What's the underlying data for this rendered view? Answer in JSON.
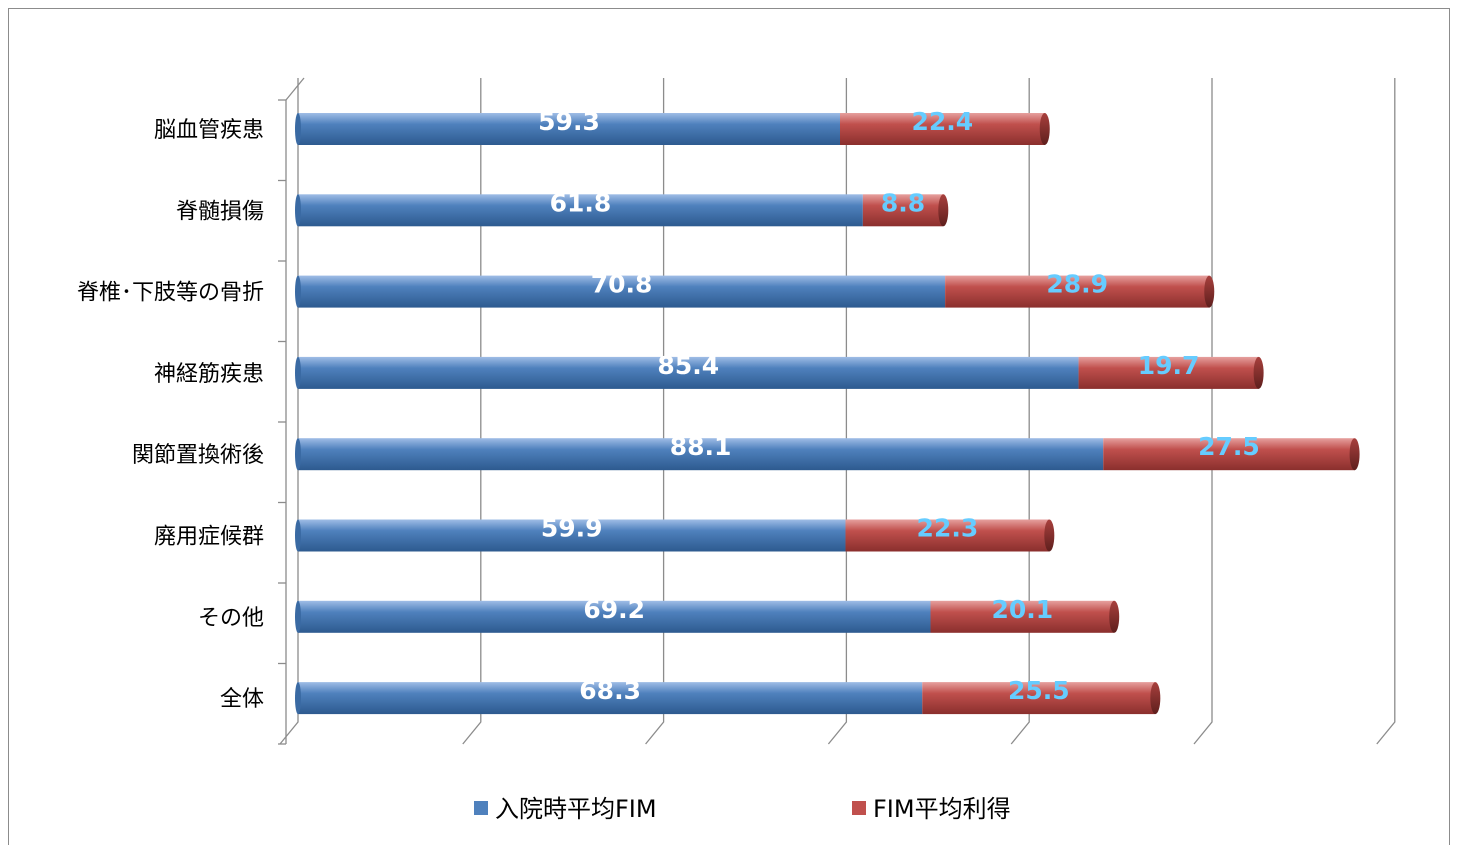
{
  "chart_data": {
    "type": "bar",
    "orientation": "horizontal",
    "stacked": true,
    "categories": [
      "脳血管疾患",
      "脊髄損傷",
      "脊椎･下肢等の骨折",
      "神経筋疾患",
      "関節置換術後",
      "廃用症候群",
      "その他",
      "全体"
    ],
    "series": [
      {
        "name": "入院時平均FIM",
        "values": [
          59.3,
          61.8,
          70.8,
          85.4,
          88.1,
          59.9,
          69.2,
          68.3
        ],
        "color": "#4f81bd"
      },
      {
        "name": "FIM平均利得",
        "values": [
          22.4,
          8.8,
          28.9,
          19.7,
          27.5,
          22.3,
          20.1,
          25.5
        ],
        "color": "#c0504d"
      }
    ],
    "xlim": [
      0,
      120
    ],
    "grid": true,
    "legend_position": "bottom",
    "label_colors": {
      "入院時平均FIM": "#ffffff",
      "FIM平均利得": "#66ccff"
    }
  }
}
